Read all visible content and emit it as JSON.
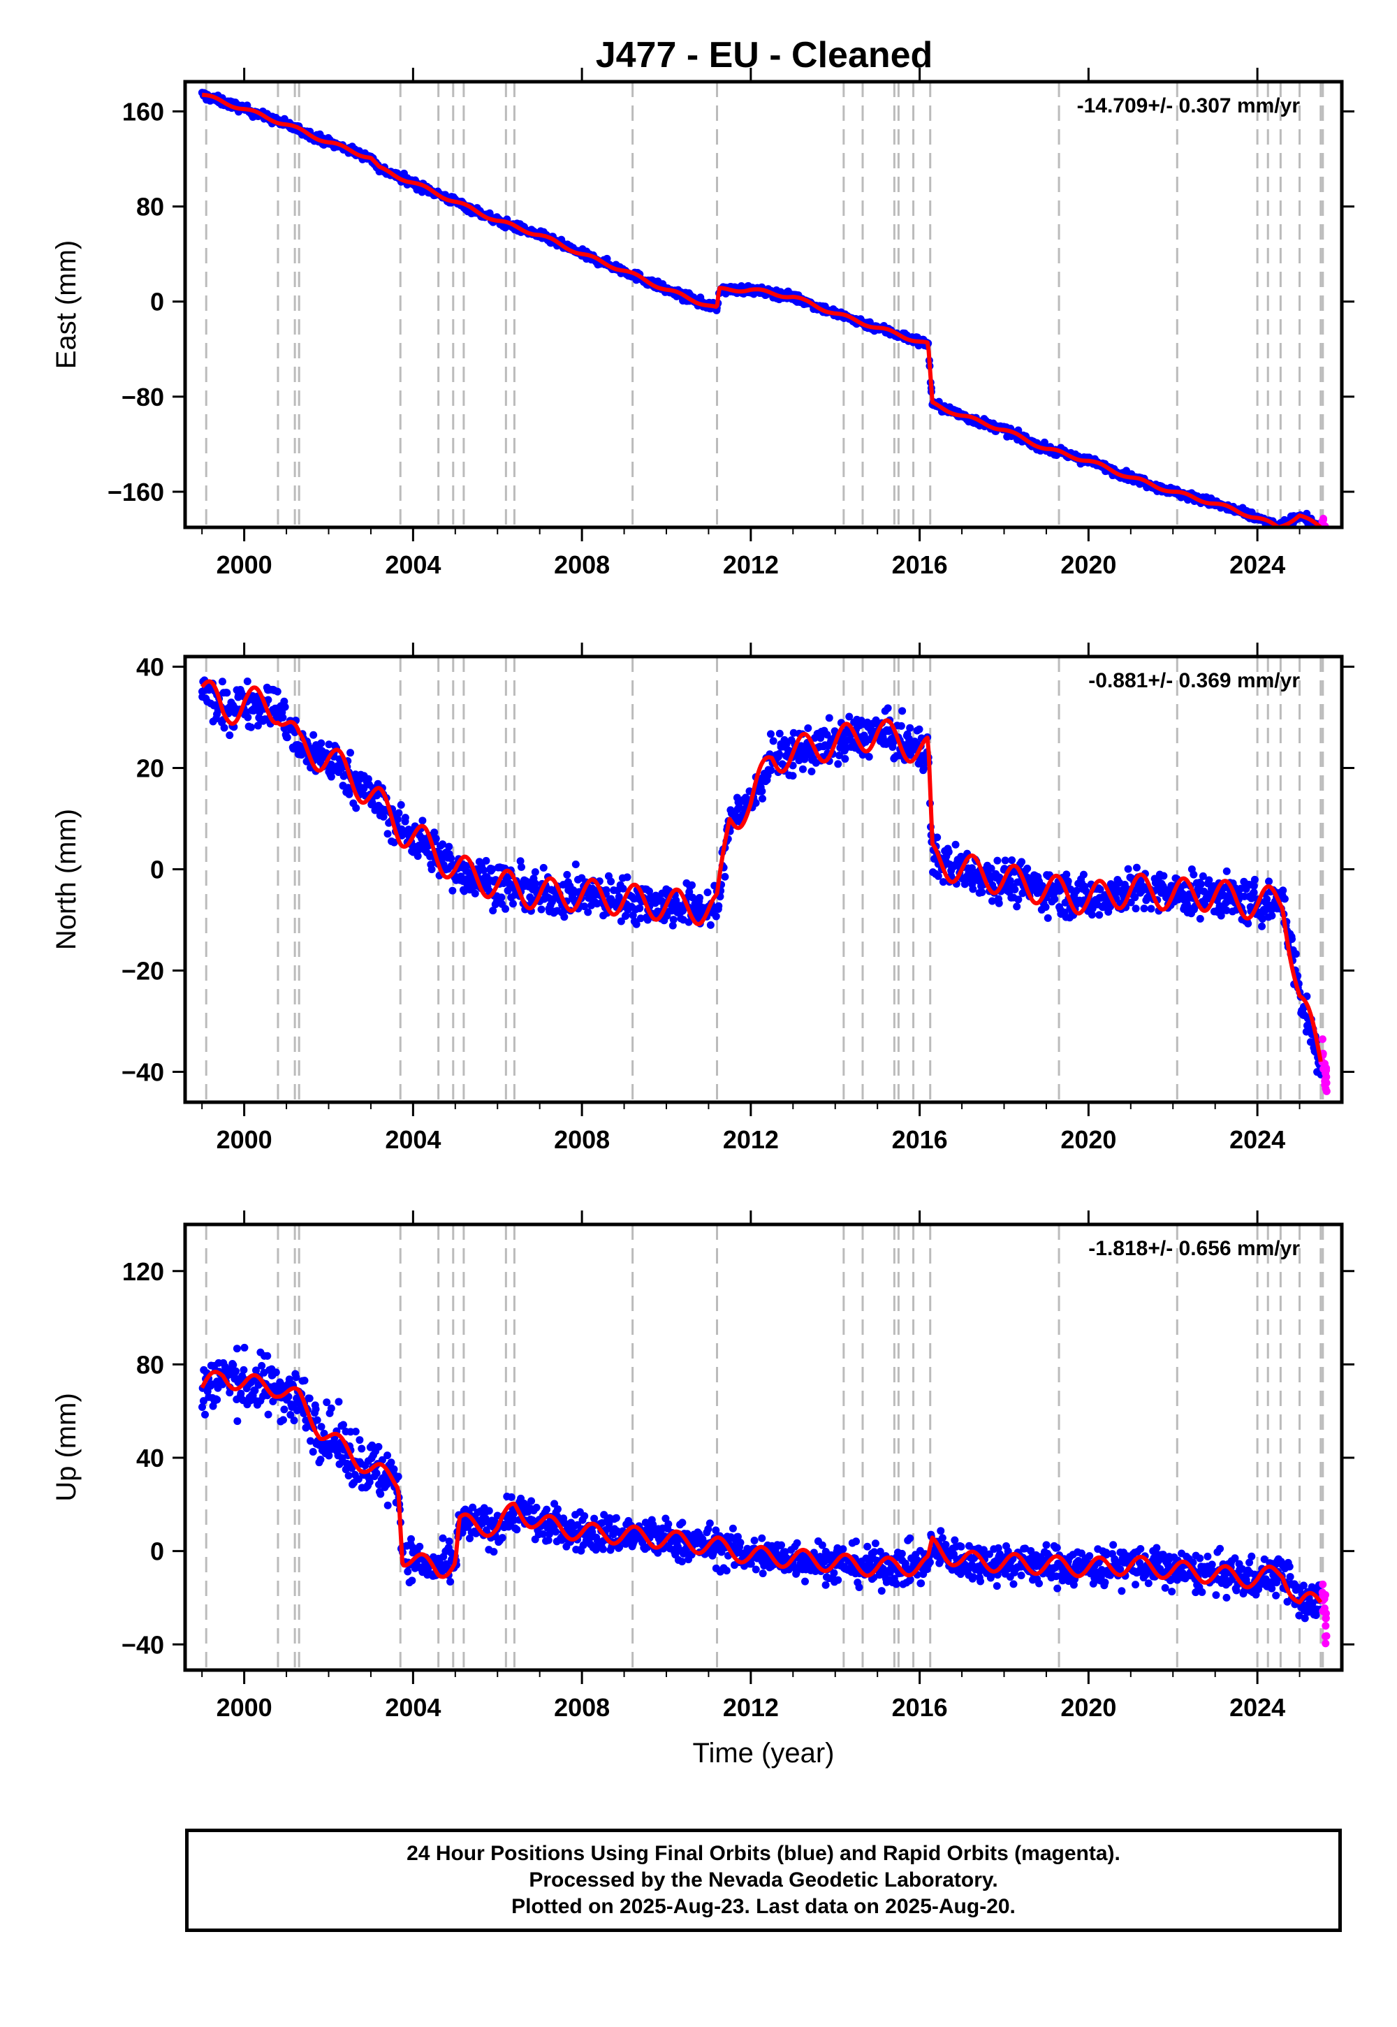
{
  "title": "J477  - EU - Cleaned",
  "footer": {
    "lines": [
      "24 Hour Positions Using Final Orbits (blue) and Rapid Orbits (magenta).",
      "Processed by the Nevada Geodetic Laboratory.",
      "Plotted on 2025-Aug-23. Last data on 2025-Aug-20."
    ]
  },
  "colors": {
    "final": "#0000ff",
    "rapid": "#ff00ff",
    "model": "#ff0000",
    "event_lines": "#bbbbbb",
    "frame": "#000000"
  },
  "chart_data": [
    {
      "type": "scatter",
      "ylabel": "East (mm)",
      "xlabel": "",
      "rate_label": "-14.709+/- 0.307 mm/yr",
      "xlim": [
        1998.6,
        2026.0
      ],
      "ylim": [
        -190,
        185
      ],
      "xticks": [
        2000,
        2004,
        2008,
        2012,
        2016,
        2020,
        2024
      ],
      "xtick_labels": [
        "2000",
        "2004",
        "2008",
        "2012",
        "2016",
        "2020",
        "2024"
      ],
      "yticks": [
        160,
        80,
        0,
        -80,
        -160
      ],
      "ytick_labels": [
        "160",
        "80",
        "0",
        "−80",
        "−160"
      ],
      "event_lines": [
        1999.1,
        2000.8,
        2001.2,
        2001.3,
        2003.7,
        2004.6,
        2004.95,
        2005.2,
        2006.2,
        2006.4,
        2009.2,
        2011.2,
        2014.2,
        2014.65,
        2015.4,
        2015.5,
        2015.85,
        2016.25,
        2019.3,
        2022.1,
        2024.0,
        2024.25,
        2024.55,
        2025.0,
        2025.5,
        2025.55
      ],
      "series": [
        {
          "name": "Final Orbits",
          "color": "#0000ff",
          "scatter": 2.5,
          "x": [
            1999.0,
            2000.0,
            2001.0,
            2002.0,
            2003.0,
            2003.2,
            2004.0,
            2005.0,
            2006.0,
            2007.0,
            2008.0,
            2009.0,
            2010.0,
            2011.2,
            2011.25,
            2012.0,
            2013.0,
            2014.0,
            2015.0,
            2016.2,
            2016.3,
            2017.0,
            2018.0,
            2019.0,
            2020.0,
            2021.0,
            2022.0,
            2023.0,
            2024.0,
            2024.5,
            2025.0,
            2025.5
          ],
          "y": [
            174,
            162,
            149,
            134,
            121,
            112,
            100,
            84,
            68,
            56,
            40,
            26,
            10,
            -6,
            10,
            10,
            4,
            -10,
            -22,
            -36,
            -86,
            -96,
            -108,
            -124,
            -134,
            -148,
            -160,
            -170,
            -182,
            -190,
            -180,
            -190
          ]
        },
        {
          "name": "Rapid Orbits",
          "color": "#ff00ff",
          "scatter": 3,
          "x": [
            2025.55,
            2025.6,
            2025.63
          ],
          "y": [
            -185,
            -191,
            -196
          ]
        },
        {
          "name": "Model",
          "color": "#ff0000",
          "scatter": 0,
          "x": [
            1999.0,
            2000.0,
            2001.0,
            2002.0,
            2003.0,
            2003.2,
            2004.0,
            2005.0,
            2006.0,
            2007.0,
            2008.0,
            2009.0,
            2010.0,
            2011.2,
            2011.25,
            2012.0,
            2013.0,
            2014.0,
            2015.0,
            2016.2,
            2016.3,
            2017.0,
            2018.0,
            2019.0,
            2020.0,
            2021.0,
            2022.0,
            2023.0,
            2024.0,
            2024.5,
            2025.0,
            2025.5
          ],
          "y": [
            174,
            162,
            149,
            134,
            121,
            112,
            100,
            84,
            68,
            56,
            40,
            26,
            10,
            -6,
            10,
            10,
            4,
            -10,
            -22,
            -36,
            -86,
            -96,
            -108,
            -124,
            -134,
            -148,
            -160,
            -170,
            -182,
            -190,
            -180,
            -190
          ]
        }
      ]
    },
    {
      "type": "scatter",
      "ylabel": "North (mm)",
      "xlabel": "",
      "rate_label": "-0.881+/- 0.369 mm/yr",
      "xlim": [
        1998.6,
        2026.0
      ],
      "ylim": [
        -46,
        42
      ],
      "xticks": [
        2000,
        2004,
        2008,
        2012,
        2016,
        2020,
        2024
      ],
      "xtick_labels": [
        "2000",
        "2004",
        "2008",
        "2012",
        "2016",
        "2020",
        "2024"
      ],
      "yticks": [
        40,
        20,
        0,
        -20,
        -40
      ],
      "ytick_labels": [
        "40",
        "20",
        "0",
        "−20",
        "−40"
      ],
      "event_lines": [
        1999.1,
        2000.8,
        2001.2,
        2001.3,
        2003.7,
        2004.6,
        2004.95,
        2005.2,
        2006.2,
        2006.4,
        2009.2,
        2011.2,
        2014.2,
        2014.65,
        2015.4,
        2015.5,
        2015.85,
        2016.25,
        2019.3,
        2022.1,
        2024.0,
        2024.25,
        2024.55,
        2025.0,
        2025.5,
        2025.55
      ],
      "series": [
        {
          "name": "Final Orbits",
          "color": "#0000ff",
          "scatter": 3,
          "x": [
            1999.0,
            1999.5,
            2000.0,
            2000.8,
            2001.3,
            2002.0,
            2002.7,
            2003.2,
            2003.7,
            2004.3,
            2005.0,
            2006.0,
            2007.0,
            2008.0,
            2009.0,
            2010.0,
            2011.2,
            2011.5,
            2012.0,
            2012.5,
            2013.0,
            2014.0,
            2015.0,
            2016.2,
            2016.3,
            2017.0,
            2018.0,
            2019.0,
            2020.0,
            2021.0,
            2022.0,
            2023.0,
            2024.0,
            2024.6,
            2025.0,
            2025.5
          ],
          "y": [
            36,
            31,
            33,
            32,
            24,
            22,
            17,
            13,
            8,
            5,
            0,
            -3,
            -5,
            -5,
            -6,
            -7,
            -8,
            10,
            13,
            22,
            23,
            25,
            27,
            23,
            2,
            0,
            -2,
            -4,
            -6,
            -4,
            -5,
            -5,
            -7,
            -6,
            -25,
            -38
          ]
        },
        {
          "name": "Rapid Orbits",
          "color": "#ff00ff",
          "scatter": 3,
          "x": [
            2025.55,
            2025.6,
            2025.63
          ],
          "y": [
            -36,
            -40,
            -42
          ]
        },
        {
          "name": "Model",
          "color": "#ff0000",
          "scatter": 0,
          "x": [
            1999.0,
            1999.5,
            2000.0,
            2000.8,
            2001.3,
            2002.0,
            2002.7,
            2003.2,
            2003.7,
            2004.3,
            2005.0,
            2006.0,
            2007.0,
            2008.0,
            2009.0,
            2010.0,
            2011.2,
            2011.5,
            2012.0,
            2012.5,
            2013.0,
            2014.0,
            2015.0,
            2016.2,
            2016.3,
            2017.0,
            2018.0,
            2019.0,
            2020.0,
            2021.0,
            2022.0,
            2023.0,
            2024.0,
            2024.6,
            2025.0,
            2025.5
          ],
          "y": [
            36,
            31,
            33,
            32,
            24,
            22,
            17,
            13,
            8,
            5,
            0,
            -3,
            -5,
            -5,
            -6,
            -7,
            -8,
            10,
            13,
            22,
            23,
            25,
            27,
            23,
            2,
            0,
            -2,
            -4,
            -6,
            -4,
            -5,
            -5,
            -7,
            -6,
            -25,
            -38
          ]
        }
      ]
    },
    {
      "type": "scatter",
      "ylabel": "Up (mm)",
      "xlabel": "Time (year)",
      "rate_label": "-1.818+/- 0.656 mm/yr",
      "xlim": [
        1998.6,
        2026.0
      ],
      "ylim": [
        -51,
        140
      ],
      "xticks": [
        2000,
        2004,
        2008,
        2012,
        2016,
        2020,
        2024
      ],
      "xtick_labels": [
        "2000",
        "2004",
        "2008",
        "2012",
        "2016",
        "2020",
        "2024"
      ],
      "yticks": [
        120,
        80,
        40,
        0,
        -40
      ],
      "ytick_labels": [
        "120",
        "80",
        "40",
        "0",
        "−40"
      ],
      "event_lines": [
        1999.1,
        2000.8,
        2001.2,
        2001.3,
        2003.7,
        2004.6,
        2004.95,
        2005.2,
        2006.2,
        2006.4,
        2009.2,
        2011.2,
        2014.2,
        2014.65,
        2015.4,
        2015.5,
        2015.85,
        2016.25,
        2019.3,
        2022.1,
        2024.0,
        2024.25,
        2024.55,
        2025.0,
        2025.5,
        2025.55
      ],
      "series": [
        {
          "name": "Final Orbits",
          "color": "#0000ff",
          "scatter": 10,
          "x": [
            1999.0,
            1999.5,
            2000.0,
            2000.8,
            2001.3,
            2001.8,
            2002.5,
            2003.0,
            2003.65,
            2003.75,
            2004.6,
            2005.0,
            2005.1,
            2006.0,
            2006.4,
            2007.0,
            2008.0,
            2009.0,
            2010.0,
            2011.2,
            2012.0,
            2013.0,
            2014.0,
            2015.0,
            2016.2,
            2016.3,
            2017.0,
            2018.0,
            2019.0,
            2020.0,
            2021.0,
            2022.0,
            2023.0,
            2024.0,
            2024.6,
            2025.0,
            2025.5
          ],
          "y": [
            70,
            75,
            72,
            70,
            65,
            52,
            42,
            35,
            30,
            -2,
            -8,
            -5,
            12,
            10,
            18,
            12,
            8,
            7,
            5,
            2,
            -2,
            -3,
            -5,
            -7,
            -6,
            2,
            -4,
            -5,
            -6,
            -7,
            -6,
            -8,
            -10,
            -12,
            -9,
            -22,
            -22
          ]
        },
        {
          "name": "Rapid Orbits",
          "color": "#ff00ff",
          "scatter": 8,
          "x": [
            2025.55,
            2025.6,
            2025.63
          ],
          "y": [
            -18,
            -25,
            -30
          ]
        },
        {
          "name": "Model",
          "color": "#ff0000",
          "scatter": 0,
          "x": [
            1999.0,
            1999.5,
            2000.0,
            2000.8,
            2001.3,
            2001.8,
            2002.5,
            2003.0,
            2003.65,
            2003.75,
            2004.6,
            2005.0,
            2005.1,
            2006.0,
            2006.4,
            2007.0,
            2008.0,
            2009.0,
            2010.0,
            2011.2,
            2012.0,
            2013.0,
            2014.0,
            2015.0,
            2016.2,
            2016.3,
            2017.0,
            2018.0,
            2019.0,
            2020.0,
            2021.0,
            2022.0,
            2023.0,
            2024.0,
            2024.6,
            2025.0,
            2025.5
          ],
          "y": [
            70,
            75,
            72,
            70,
            65,
            52,
            42,
            35,
            30,
            -2,
            -8,
            -5,
            12,
            10,
            18,
            12,
            8,
            7,
            5,
            2,
            -2,
            -3,
            -5,
            -7,
            -6,
            2,
            -4,
            -5,
            -6,
            -7,
            -6,
            -8,
            -10,
            -12,
            -9,
            -22,
            -22
          ]
        }
      ]
    }
  ]
}
